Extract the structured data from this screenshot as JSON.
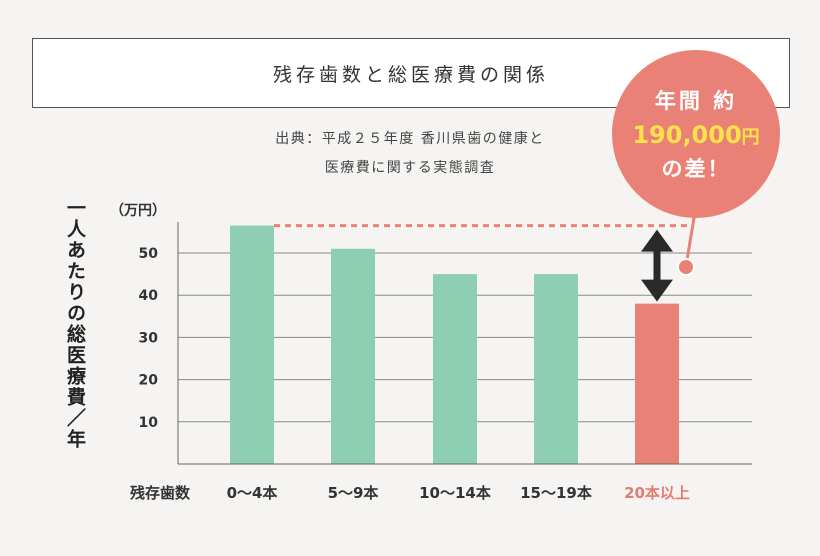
{
  "title": "残存歯数と総医療費の関係",
  "source_line1": "出典：平成２５年度 香川県歯の健康と",
  "source_line2": "医療費に関する実態調査",
  "callout": {
    "line1": "年間 約",
    "amount": "190,000",
    "unit": "円",
    "line3": "の差！"
  },
  "colors": {
    "bar": "#8ecfb4",
    "highlight_bar": "#ea8176",
    "highlight_text": "#e47c70",
    "callout_amount": "#ffe24a",
    "dashed_line": "#ea8176",
    "arrow": "#2a2a2a"
  },
  "chart_data": {
    "type": "bar",
    "xlabel": "残存歯数",
    "ylabel": "一人あたりの総医療費／年",
    "yunit": "（万円）",
    "categories": [
      "0～4本",
      "5～9本",
      "10～14本",
      "15～19本",
      "20本以上"
    ],
    "values": [
      56.5,
      51,
      45,
      45,
      38
    ],
    "highlight_index": 4,
    "yticks": [
      10,
      20,
      30,
      40,
      50
    ],
    "ylim": [
      0,
      60
    ],
    "grid": true,
    "annotation": "dashed reference line at max value; double arrow to highlighted bar"
  }
}
